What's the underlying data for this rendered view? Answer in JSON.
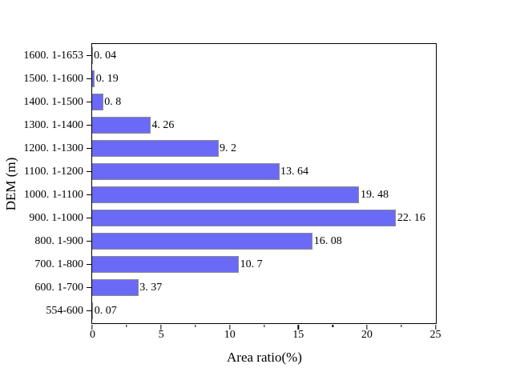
{
  "chart_data": {
    "type": "bar",
    "orientation": "horizontal",
    "title": "",
    "xlabel": "Area ratio(%)",
    "ylabel": "DEM (m)",
    "xlim": [
      0,
      25
    ],
    "x_major_ticks": [
      0,
      5,
      10,
      15,
      20,
      25
    ],
    "x_major_tick_labels": [
      "0",
      "5",
      "10",
      "15",
      "20",
      "25"
    ],
    "x_minor_ticks": [
      2.5,
      7.5,
      12.5,
      17.5,
      22.5
    ],
    "grid": false,
    "legend": false,
    "categories": [
      "1600.1-1653",
      "1500.1-1600",
      "1400.1-1500",
      "1300.1-1400",
      "1200.1-1300",
      "1100.1-1200",
      "1000.1-1100",
      "900.1-1000",
      "800.1-900",
      "700.1-800",
      "600.1-700",
      "554-600"
    ],
    "category_display_labels": [
      "1600. 1-1653",
      "1500. 1-1600",
      "1400. 1-1500",
      "1300. 1-1400",
      "1200. 1-1300",
      "1100. 1-1200",
      "1000. 1-1100",
      "900. 1-1000",
      "800. 1-900",
      "700. 1-800",
      "600. 1-700",
      "554-600"
    ],
    "values": [
      0.04,
      0.19,
      0.8,
      4.26,
      9.2,
      13.64,
      19.48,
      22.16,
      16.08,
      10.7,
      3.37,
      0.07
    ],
    "value_display_labels": [
      "0. 04",
      "0. 19",
      "0. 8",
      "4. 26",
      "9. 2",
      "13. 64",
      "19. 48",
      "22. 16",
      "16. 08",
      "10. 7",
      "3. 37",
      "0. 07"
    ]
  },
  "colors": {
    "bar_fill": "#6a6af7",
    "bar_edge": "#8c8c8c",
    "axis": "#000000",
    "text": "#000000",
    "background": "#ffffff"
  }
}
